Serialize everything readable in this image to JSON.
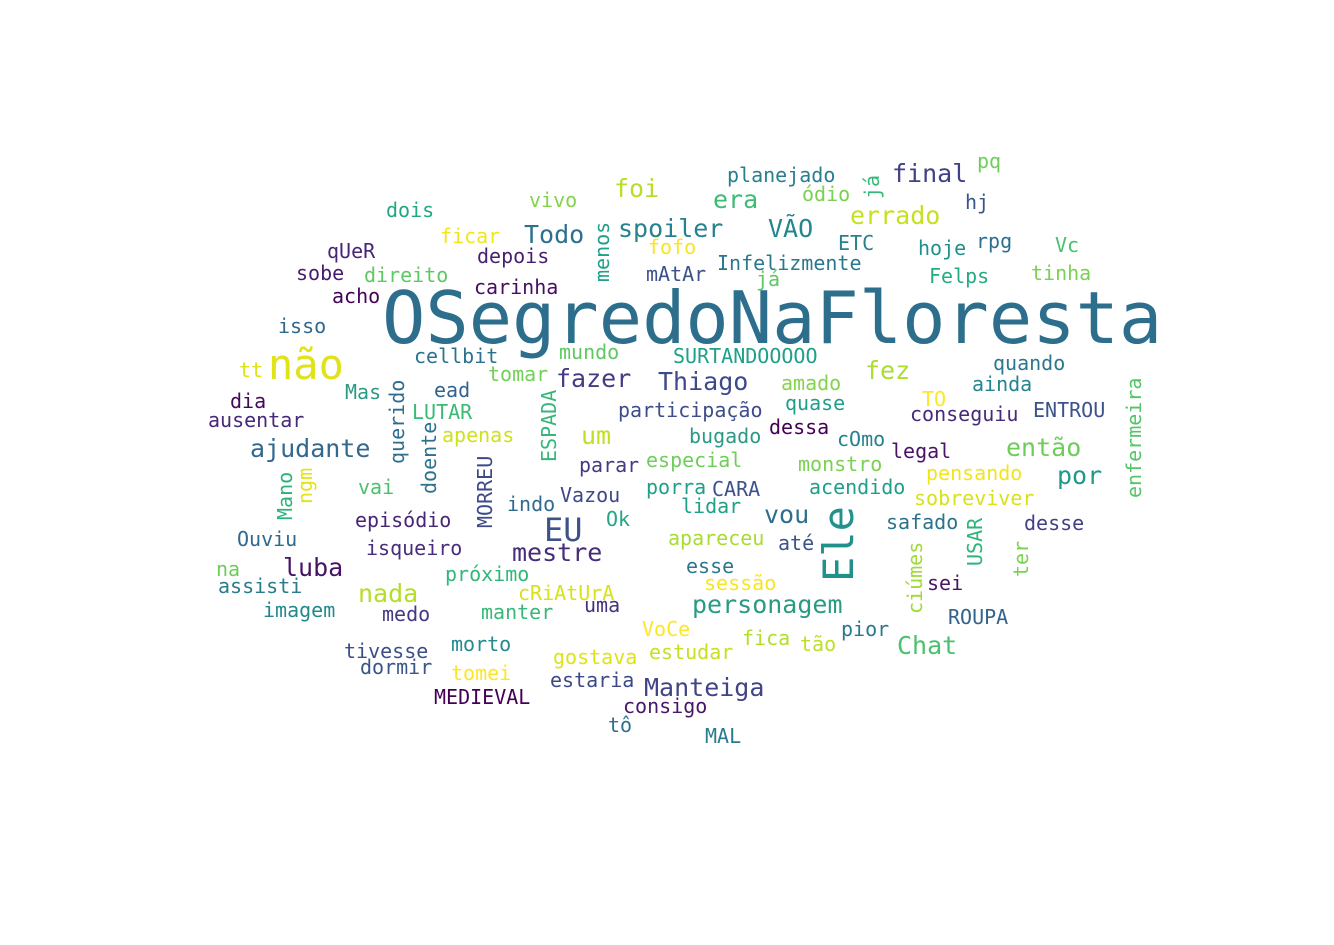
{
  "words": [
    {
      "text": "OSegredoNaFloresta",
      "color": "#2c6e8c"
    },
    {
      "text": "não",
      "color": "#dfe318"
    },
    {
      "text": "Ele",
      "color": "#21918c"
    },
    {
      "text": "EU",
      "color": "#3b528b"
    },
    {
      "text": "Manteiga",
      "color": "#414487"
    },
    {
      "text": "personagem",
      "color": "#2a9a84"
    },
    {
      "text": "ajudante",
      "color": "#31688e"
    },
    {
      "text": "Thiago",
      "color": "#3e4989"
    },
    {
      "text": "mestre",
      "color": "#472c7a"
    },
    {
      "text": "fazer",
      "color": "#443b84"
    },
    {
      "text": "luba",
      "color": "#471365"
    },
    {
      "text": "nada",
      "color": "#b5de2b"
    },
    {
      "text": "Chat",
      "color": "#4ac16d"
    },
    {
      "text": "spoiler",
      "color": "#26828e"
    },
    {
      "text": "Todo",
      "color": "#2d718e"
    },
    {
      "text": "final",
      "color": "#424086"
    },
    {
      "text": "errado",
      "color": "#c8e020"
    },
    {
      "text": "era",
      "color": "#3dbc74"
    },
    {
      "text": "foi",
      "color": "#b8de29"
    },
    {
      "text": "VÃO",
      "color": "#24878e"
    },
    {
      "text": "então",
      "color": "#6ccd5a"
    },
    {
      "text": "por",
      "color": "#1f9a8a"
    },
    {
      "text": "fez",
      "color": "#addc30"
    },
    {
      "text": "vou",
      "color": "#2e6e8e"
    },
    {
      "text": "um",
      "color": "#c2df23"
    },
    {
      "text": "planejado",
      "color": "#277f8e"
    },
    {
      "text": "pq",
      "color": "#6ece58"
    },
    {
      "text": "ódio",
      "color": "#7ad151"
    },
    {
      "text": "já",
      "color": "#35b779"
    },
    {
      "text": "hj",
      "color": "#39568c"
    },
    {
      "text": "vivo",
      "color": "#84d44b"
    },
    {
      "text": "dois",
      "color": "#22a785"
    },
    {
      "text": "ficar",
      "color": "#f1e51d"
    },
    {
      "text": "menos",
      "color": "#1fa088"
    },
    {
      "text": "fofo",
      "color": "#f8e621"
    },
    {
      "text": "ETC",
      "color": "#26828e"
    },
    {
      "text": "hoje",
      "color": "#21908d"
    },
    {
      "text": "rpg",
      "color": "#2d708e"
    },
    {
      "text": "Vc",
      "color": "#4ac16d"
    },
    {
      "text": "qUeR",
      "color": "#482576"
    },
    {
      "text": "depois",
      "color": "#481f70"
    },
    {
      "text": "Infelizmente",
      "color": "#2a788e"
    },
    {
      "text": "sobe",
      "color": "#481b6d"
    },
    {
      "text": "direito",
      "color": "#5ec962"
    },
    {
      "text": "mAtAr",
      "color": "#3b528b"
    },
    {
      "text": "já",
      "color": "#5cc863"
    },
    {
      "text": "Felps",
      "color": "#25ab82"
    },
    {
      "text": "tinha",
      "color": "#7ad151"
    },
    {
      "text": "acho",
      "color": "#440154"
    },
    {
      "text": "carinha",
      "color": "#470d60"
    },
    {
      "text": "isso",
      "color": "#31688e"
    },
    {
      "text": "cellbit",
      "color": "#2c728e"
    },
    {
      "text": "mundo",
      "color": "#5ec962"
    },
    {
      "text": "SURTANDOOOOO",
      "color": "#1fa088"
    },
    {
      "text": "quando",
      "color": "#2a788e"
    },
    {
      "text": "tt",
      "color": "#dde318"
    },
    {
      "text": "tomar",
      "color": "#73d056"
    },
    {
      "text": "amado",
      "color": "#84d44b"
    },
    {
      "text": "Mas",
      "color": "#2a9a84"
    },
    {
      "text": "ead",
      "color": "#33638d"
    },
    {
      "text": "ainda",
      "color": "#25848e"
    },
    {
      "text": "dia",
      "color": "#46075a"
    },
    {
      "text": "querido",
      "color": "#2f6c8e"
    },
    {
      "text": "ESPADA",
      "color": "#35b779"
    },
    {
      "text": "participação",
      "color": "#3e4c8a"
    },
    {
      "text": "quase",
      "color": "#1f9e89"
    },
    {
      "text": "TO",
      "color": "#fde725"
    },
    {
      "text": "conseguiu",
      "color": "#472a7a"
    },
    {
      "text": "ENTROU",
      "color": "#3b528b"
    },
    {
      "text": "enfermeira",
      "color": "#54c568"
    },
    {
      "text": "ausentar",
      "color": "#482878"
    },
    {
      "text": "LUTAR",
      "color": "#3aba76"
    },
    {
      "text": "doente",
      "color": "#2c728e"
    },
    {
      "text": "apenas",
      "color": "#d0e11c"
    },
    {
      "text": "bugado",
      "color": "#2a9a84"
    },
    {
      "text": "dessa",
      "color": "#440154"
    },
    {
      "text": "cOmo",
      "color": "#26828e"
    },
    {
      "text": "legal",
      "color": "#481467"
    },
    {
      "text": "parar",
      "color": "#443a83"
    },
    {
      "text": "especial",
      "color": "#6ece58"
    },
    {
      "text": "monstro",
      "color": "#7ad151"
    },
    {
      "text": "pensando",
      "color": "#f1e51d"
    },
    {
      "text": "Mano",
      "color": "#2db27d"
    },
    {
      "text": "ngm",
      "color": "#e2e418"
    },
    {
      "text": "vai",
      "color": "#4ac16d"
    },
    {
      "text": "MORREU",
      "color": "#3e4989"
    },
    {
      "text": "porra",
      "color": "#1f9e89"
    },
    {
      "text": "CARA",
      "color": "#3b528b"
    },
    {
      "text": "acendido",
      "color": "#1f9e89"
    },
    {
      "text": "sobreviver",
      "color": "#d8e219"
    },
    {
      "text": "indo",
      "color": "#306a8e"
    },
    {
      "text": "Vazou",
      "color": "#3e4989"
    },
    {
      "text": "lidar",
      "color": "#1fa088"
    },
    {
      "text": "episódio",
      "color": "#482475"
    },
    {
      "text": "Ok",
      "color": "#22a785"
    },
    {
      "text": "safado",
      "color": "#2c728e"
    },
    {
      "text": "USAR",
      "color": "#2eb37c"
    },
    {
      "text": "desse",
      "color": "#424086"
    },
    {
      "text": "ter",
      "color": "#7ad151"
    },
    {
      "text": "Ouviu",
      "color": "#31688e"
    },
    {
      "text": "isqueiro",
      "color": "#472d7b"
    },
    {
      "text": "apareceu",
      "color": "#a8db34"
    },
    {
      "text": "até",
      "color": "#3b528b"
    },
    {
      "text": "ciúmes",
      "color": "#a0da39"
    },
    {
      "text": "na",
      "color": "#6ccd5a"
    },
    {
      "text": "próximo",
      "color": "#32b67a"
    },
    {
      "text": "esse",
      "color": "#2a778e"
    },
    {
      "text": "sei",
      "color": "#481467"
    },
    {
      "text": "assisti",
      "color": "#287c8e"
    },
    {
      "text": "cRiAtUrA",
      "color": "#d8e219"
    },
    {
      "text": "sessão",
      "color": "#f8e621"
    },
    {
      "text": "imagem",
      "color": "#23898e"
    },
    {
      "text": "medo",
      "color": "#443983"
    },
    {
      "text": "manter",
      "color": "#37b878"
    },
    {
      "text": "uma",
      "color": "#46327e"
    },
    {
      "text": "ROUPA",
      "color": "#33638d"
    },
    {
      "text": "VoCe",
      "color": "#fde725"
    },
    {
      "text": "pior",
      "color": "#2a788e"
    },
    {
      "text": "tivesse",
      "color": "#3c4f8a"
    },
    {
      "text": "morto",
      "color": "#238a8d"
    },
    {
      "text": "fica",
      "color": "#b2dd2d"
    },
    {
      "text": "tão",
      "color": "#bddf26"
    },
    {
      "text": "dormir",
      "color": "#39558c"
    },
    {
      "text": "gostava",
      "color": "#dde318"
    },
    {
      "text": "estudar",
      "color": "#c8e020"
    },
    {
      "text": "tomei",
      "color": "#fde725"
    },
    {
      "text": "estaria",
      "color": "#3e4989"
    },
    {
      "text": "MEDIEVAL",
      "color": "#440154"
    },
    {
      "text": "consigo",
      "color": "#481769"
    },
    {
      "text": "tô",
      "color": "#2d718e"
    },
    {
      "text": "MAL",
      "color": "#287c8e"
    }
  ]
}
